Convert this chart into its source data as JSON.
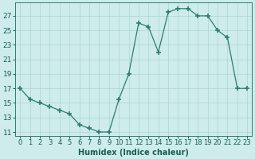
{
  "x": [
    0,
    1,
    2,
    3,
    4,
    5,
    6,
    7,
    8,
    9,
    10,
    11,
    12,
    13,
    14,
    15,
    16,
    17,
    18,
    19,
    20,
    21,
    22,
    23
  ],
  "y": [
    17,
    15.5,
    15,
    14.5,
    14,
    13.5,
    12,
    11.5,
    11,
    11,
    15.5,
    19,
    26,
    25.5,
    22,
    27.5,
    28,
    28,
    27,
    27,
    25,
    24,
    17,
    17
  ],
  "line_color": "#2d7d6e",
  "marker": "+",
  "marker_size": 4,
  "marker_lw": 1.2,
  "bg_color": "#cdecea",
  "grid_color": "#aed4d0",
  "xlabel": "Humidex (Indice chaleur)",
  "xlabel_fontsize": 7,
  "ylabel_ticks": [
    11,
    13,
    15,
    17,
    19,
    21,
    23,
    25,
    27
  ],
  "xtick_labels": [
    "0",
    "1",
    "2",
    "3",
    "4",
    "5",
    "6",
    "7",
    "8",
    "9",
    "10",
    "11",
    "12",
    "13",
    "14",
    "15",
    "16",
    "17",
    "18",
    "19",
    "20",
    "21",
    "22",
    "23"
  ],
  "ylim": [
    10.5,
    28.8
  ],
  "xlim": [
    -0.5,
    23.5
  ],
  "tick_color": "#1a5e52",
  "tick_fontsize": 6.5,
  "spine_color": "#2d7d6e",
  "linewidth": 0.9
}
